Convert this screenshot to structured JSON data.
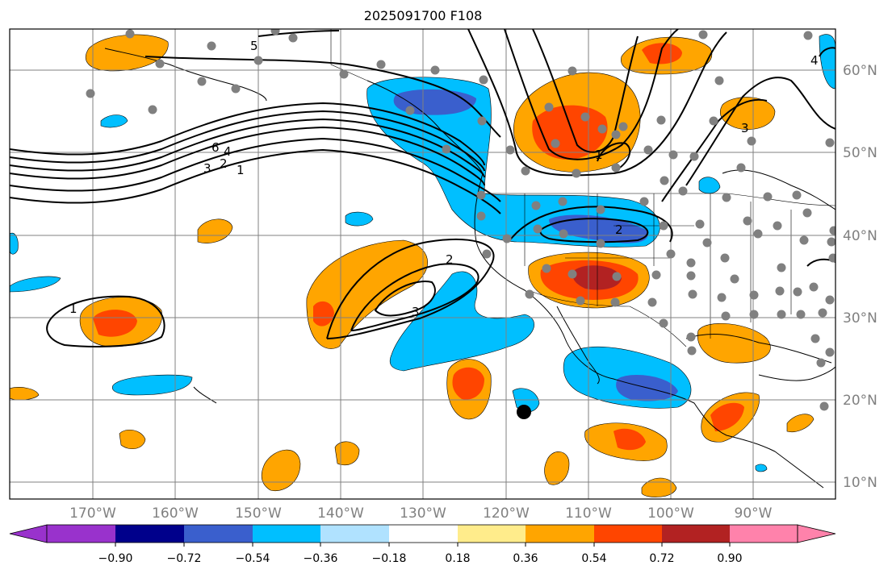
{
  "title": "2025091700 F108",
  "map": {
    "lat_labels": [
      "10°N",
      "20°N",
      "30°N",
      "40°N",
      "50°N",
      "60°N"
    ],
    "lon_labels": [
      "170°W",
      "160°W",
      "150°W",
      "140°W",
      "130°W",
      "120°W",
      "110°W",
      "100°W",
      "90°W"
    ],
    "contour_labels": [
      "5",
      "6",
      "4",
      "3",
      "2",
      "1",
      "1",
      "2",
      "3",
      "1",
      "2",
      "3",
      "4"
    ],
    "grid_visible": true,
    "storm_marker": "filled-circle"
  },
  "colorbar": {
    "tick_labels": [
      "−0.90",
      "−0.72",
      "−0.54",
      "−0.36",
      "−0.18",
      "0.18",
      "0.36",
      "0.54",
      "0.72",
      "0.90"
    ],
    "colors": [
      "#9932cc",
      "#00008b",
      "#3a5fcd",
      "#00bfff",
      "#b0e2ff",
      "#ffffff",
      "#ffec8b",
      "#ffa500",
      "#ff4500",
      "#b22222",
      "#ff82ab"
    ]
  }
}
